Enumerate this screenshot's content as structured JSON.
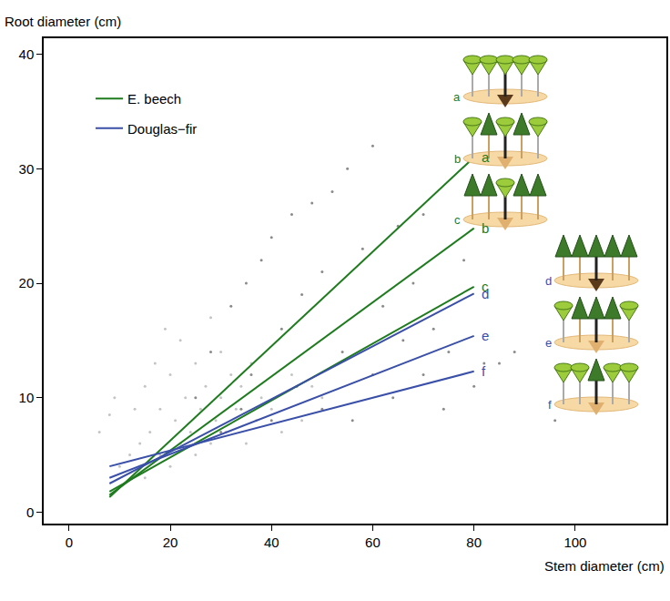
{
  "chart_data": {
    "type": "scatter",
    "x_label": "Stem diameter (cm)",
    "y_label": "Root diameter (cm)",
    "xlim": [
      -5,
      118
    ],
    "ylim": [
      -1,
      41.4
    ],
    "xticks": [
      0,
      20,
      40,
      60,
      80,
      100
    ],
    "yticks": [
      0,
      10,
      20,
      30,
      40
    ],
    "grid": false,
    "legend": "upper left",
    "points": [
      {
        "color": "#c4c4c4",
        "x": [
          6,
          8,
          9,
          10,
          12,
          13,
          14,
          15,
          15,
          16,
          17,
          18,
          18,
          19,
          20,
          20,
          21,
          22,
          22,
          23,
          24,
          25,
          25,
          26,
          27,
          28,
          28,
          29,
          30,
          30,
          31,
          32,
          33,
          34,
          35,
          36,
          37,
          38,
          40,
          42,
          44,
          46,
          48,
          50
        ],
        "y": [
          7,
          8.5,
          10,
          4,
          5,
          9,
          6,
          3,
          11,
          7,
          13,
          5,
          9,
          16,
          4,
          12,
          8,
          6,
          15,
          10,
          7,
          5,
          13,
          9,
          11,
          6,
          17,
          8,
          10,
          14,
          7,
          12,
          9,
          11,
          6,
          13,
          8,
          10,
          9,
          7,
          12,
          8,
          11,
          10
        ]
      },
      {
        "color": "#8a8a8a",
        "x": [
          25,
          28,
          30,
          32,
          34,
          35,
          36,
          38,
          40,
          40,
          42,
          44,
          45,
          46,
          48,
          50,
          50,
          52,
          54,
          55,
          56,
          58,
          60,
          60,
          62,
          64,
          65,
          66,
          68,
          70,
          70,
          72,
          74,
          75,
          78,
          80,
          82,
          85,
          88,
          96
        ],
        "y": [
          10,
          14,
          7,
          18,
          9,
          20,
          12,
          22,
          8,
          24,
          16,
          26,
          11,
          19,
          27,
          9,
          21,
          28,
          14,
          30,
          8,
          23,
          32,
          12,
          18,
          10,
          25,
          15,
          20,
          12,
          26,
          16,
          9,
          14,
          22,
          11,
          13,
          13,
          14,
          8
        ]
      }
    ],
    "series": [
      {
        "name": "E. beech",
        "color": "#1e7b1e",
        "type": "line",
        "lines": [
          {
            "label": "a",
            "x": [
              8,
              80
            ],
            "y": [
              1.3,
              31
            ]
          },
          {
            "label": "b",
            "x": [
              8,
              80
            ],
            "y": [
              1.5,
              24.8
            ]
          },
          {
            "label": "c",
            "x": [
              8,
              80
            ],
            "y": [
              1.8,
              19.7
            ]
          }
        ]
      },
      {
        "name": "Douglas−fir",
        "color": "#3a4fa8",
        "type": "line",
        "lines": [
          {
            "label": "d",
            "x": [
              8,
              80
            ],
            "y": [
              2.5,
              19.1
            ]
          },
          {
            "label": "e",
            "x": [
              8,
              80
            ],
            "y": [
              3.0,
              15.4
            ]
          },
          {
            "label": "f",
            "x": [
              8,
              80
            ],
            "y": [
              4.0,
              12.3
            ]
          }
        ]
      }
    ]
  }
}
